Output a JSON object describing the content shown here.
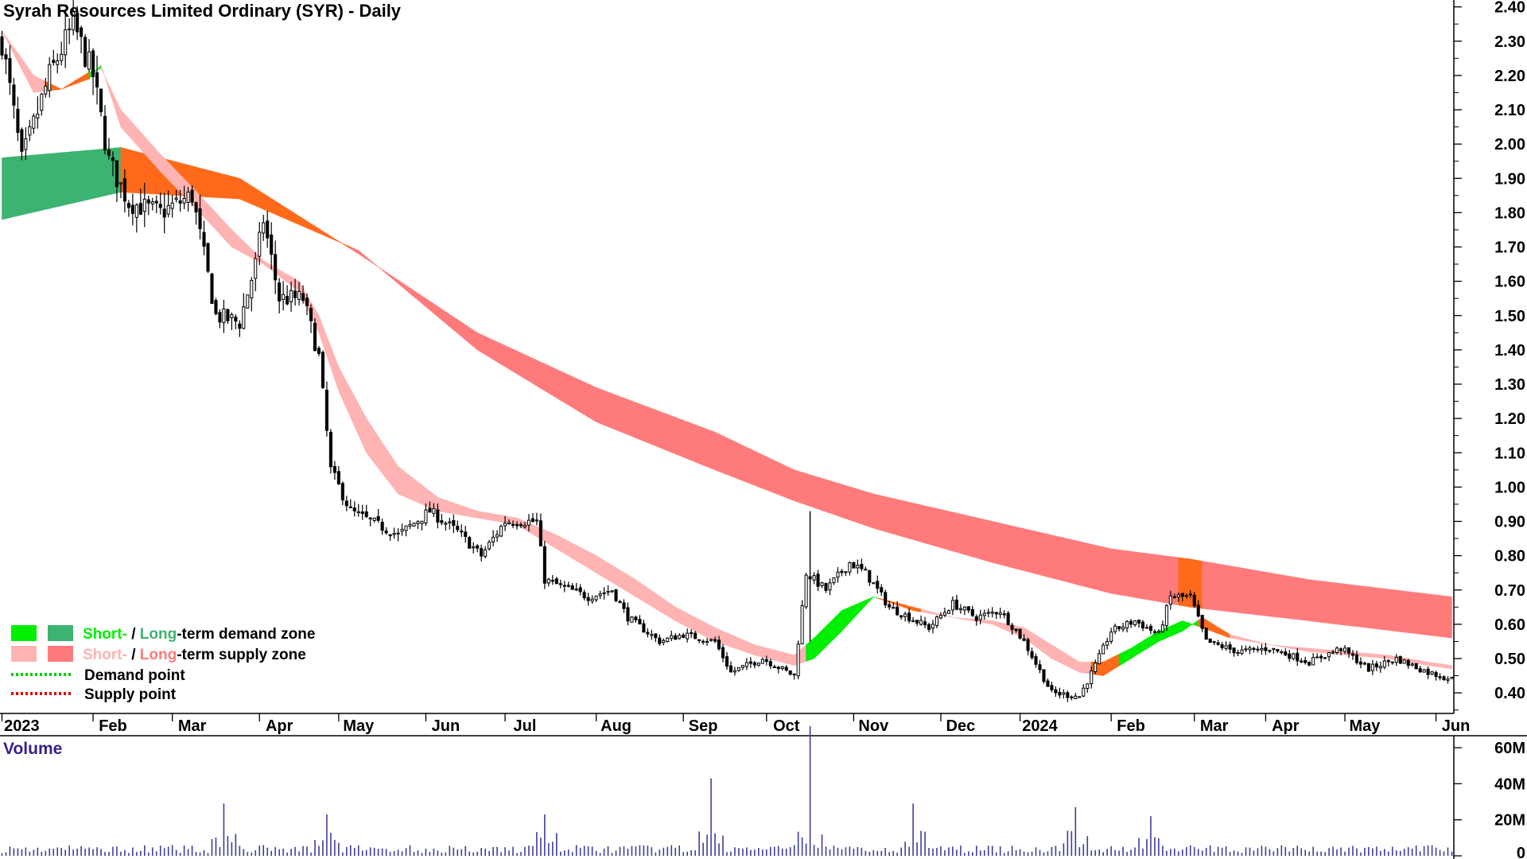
{
  "chart_data": {
    "type": "candlestick",
    "title": "Syrah Resources Limited Ordinary (SYR) - Daily",
    "price_axis": {
      "range": [
        0.34,
        2.42
      ],
      "ticks": [
        "2.40",
        "2.30",
        "2.20",
        "2.10",
        "2.00",
        "1.90",
        "1.80",
        "1.70",
        "1.60",
        "1.50",
        "1.40",
        "1.30",
        "1.20",
        "1.10",
        "1.00",
        "0.90",
        "0.80",
        "0.70",
        "0.60",
        "0.50",
        "0.40"
      ]
    },
    "x_labels": [
      "2023",
      "Feb",
      "Mar",
      "Apr",
      "May",
      "Jun",
      "Jul",
      "Aug",
      "Sep",
      "Oct",
      "Nov",
      "Dec",
      "2024",
      "Feb",
      "Mar",
      "Apr",
      "May",
      "Jun"
    ],
    "x_label_day_index": [
      3,
      26,
      46,
      68,
      88,
      110,
      130,
      153,
      175,
      196,
      218,
      240,
      260,
      283,
      304,
      322,
      342,
      365
    ],
    "volume": {
      "title": "Volume",
      "axis_ticks": [
        "60M",
        "40M",
        "20M",
        "0"
      ],
      "range_millions": [
        0,
        64
      ],
      "color": "#3d3d9e",
      "spikes": [
        {
          "day": 56,
          "value": 29
        },
        {
          "day": 82,
          "value": 23
        },
        {
          "day": 137,
          "value": 23
        },
        {
          "day": 179,
          "value": 43
        },
        {
          "day": 204,
          "value": 72
        },
        {
          "day": 230,
          "value": 29
        },
        {
          "day": 271,
          "value": 27
        },
        {
          "day": 290,
          "value": 22
        }
      ]
    },
    "price_anchors": [
      {
        "day": 0,
        "close": 2.3
      },
      {
        "day": 5,
        "close": 1.95
      },
      {
        "day": 12,
        "close": 2.2
      },
      {
        "day": 18,
        "close": 2.35
      },
      {
        "day": 23,
        "close": 2.2
      },
      {
        "day": 27,
        "close": 1.95
      },
      {
        "day": 32,
        "close": 1.83
      },
      {
        "day": 40,
        "close": 1.8
      },
      {
        "day": 48,
        "close": 1.85
      },
      {
        "day": 54,
        "close": 1.5
      },
      {
        "day": 60,
        "close": 1.48
      },
      {
        "day": 64,
        "close": 1.65
      },
      {
        "day": 66,
        "close": 1.78
      },
      {
        "day": 70,
        "close": 1.55
      },
      {
        "day": 76,
        "close": 1.55
      },
      {
        "day": 80,
        "close": 1.38
      },
      {
        "day": 83,
        "close": 1.05
      },
      {
        "day": 88,
        "close": 0.93
      },
      {
        "day": 100,
        "close": 0.86
      },
      {
        "day": 108,
        "close": 0.93
      },
      {
        "day": 115,
        "close": 0.87
      },
      {
        "day": 121,
        "close": 0.8
      },
      {
        "day": 127,
        "close": 0.9
      },
      {
        "day": 135,
        "close": 0.9
      },
      {
        "day": 137,
        "close": 0.73
      },
      {
        "day": 148,
        "close": 0.68
      },
      {
        "day": 154,
        "close": 0.7
      },
      {
        "day": 158,
        "close": 0.62
      },
      {
        "day": 166,
        "close": 0.55
      },
      {
        "day": 172,
        "close": 0.57
      },
      {
        "day": 180,
        "close": 0.55
      },
      {
        "day": 184,
        "close": 0.46
      },
      {
        "day": 192,
        "close": 0.5
      },
      {
        "day": 200,
        "close": 0.45
      },
      {
        "day": 203,
        "close": 0.75
      },
      {
        "day": 208,
        "close": 0.7
      },
      {
        "day": 214,
        "close": 0.78
      },
      {
        "day": 218,
        "close": 0.75
      },
      {
        "day": 224,
        "close": 0.65
      },
      {
        "day": 234,
        "close": 0.59
      },
      {
        "day": 240,
        "close": 0.66
      },
      {
        "day": 246,
        "close": 0.62
      },
      {
        "day": 252,
        "close": 0.64
      },
      {
        "day": 258,
        "close": 0.55
      },
      {
        "day": 265,
        "close": 0.4
      },
      {
        "day": 272,
        "close": 0.39
      },
      {
        "day": 276,
        "close": 0.48
      },
      {
        "day": 280,
        "close": 0.58
      },
      {
        "day": 286,
        "close": 0.61
      },
      {
        "day": 292,
        "close": 0.57
      },
      {
        "day": 295,
        "close": 0.68
      },
      {
        "day": 300,
        "close": 0.68
      },
      {
        "day": 304,
        "close": 0.55
      },
      {
        "day": 312,
        "close": 0.52
      },
      {
        "day": 320,
        "close": 0.53
      },
      {
        "day": 330,
        "close": 0.49
      },
      {
        "day": 338,
        "close": 0.53
      },
      {
        "day": 345,
        "close": 0.47
      },
      {
        "day": 352,
        "close": 0.5
      },
      {
        "day": 360,
        "close": 0.46
      },
      {
        "day": 366,
        "close": 0.44
      }
    ],
    "long_term_zone": {
      "upper": [
        [
          0,
          1.96
        ],
        [
          30,
          1.99
        ],
        [
          60,
          1.9
        ],
        [
          90,
          1.68
        ],
        [
          120,
          1.45
        ],
        [
          150,
          1.29
        ],
        [
          180,
          1.16
        ],
        [
          200,
          1.05
        ],
        [
          220,
          0.98
        ],
        [
          250,
          0.9
        ],
        [
          280,
          0.82
        ],
        [
          300,
          0.79
        ],
        [
          330,
          0.73
        ],
        [
          366,
          0.68
        ]
      ],
      "lower": [
        [
          0,
          1.78
        ],
        [
          30,
          1.86
        ],
        [
          60,
          1.84
        ],
        [
          90,
          1.69
        ],
        [
          120,
          1.4
        ],
        [
          150,
          1.19
        ],
        [
          180,
          1.05
        ],
        [
          200,
          0.96
        ],
        [
          220,
          0.88
        ],
        [
          250,
          0.78
        ],
        [
          280,
          0.69
        ],
        [
          300,
          0.65
        ],
        [
          330,
          0.61
        ],
        [
          366,
          0.56
        ]
      ],
      "segments": [
        {
          "from": 0,
          "to": 30,
          "color": "#3cb371"
        },
        {
          "from": 30,
          "to": 88,
          "color": "#ff6a1a"
        },
        {
          "from": 88,
          "to": 297,
          "color": "#ff7b7b"
        },
        {
          "from": 297,
          "to": 303,
          "color": "#ff6a1a"
        },
        {
          "from": 303,
          "to": 366,
          "color": "#ff7b7b"
        }
      ]
    },
    "short_term_zone": {
      "upper": [
        [
          0,
          2.33
        ],
        [
          8,
          2.2
        ],
        [
          15,
          2.16
        ],
        [
          22,
          2.21
        ],
        [
          25,
          2.22
        ],
        [
          30,
          2.1
        ],
        [
          40,
          1.97
        ],
        [
          50,
          1.85
        ],
        [
          58,
          1.75
        ],
        [
          66,
          1.66
        ],
        [
          75,
          1.6
        ],
        [
          80,
          1.5
        ],
        [
          85,
          1.35
        ],
        [
          92,
          1.2
        ],
        [
          100,
          1.06
        ],
        [
          110,
          0.97
        ],
        [
          120,
          0.93
        ],
        [
          130,
          0.91
        ],
        [
          140,
          0.86
        ],
        [
          150,
          0.8
        ],
        [
          160,
          0.73
        ],
        [
          170,
          0.65
        ],
        [
          180,
          0.59
        ],
        [
          190,
          0.54
        ],
        [
          200,
          0.51
        ],
        [
          205,
          0.56
        ],
        [
          212,
          0.64
        ],
        [
          220,
          0.68
        ],
        [
          230,
          0.65
        ],
        [
          240,
          0.62
        ],
        [
          250,
          0.61
        ],
        [
          258,
          0.59
        ],
        [
          265,
          0.54
        ],
        [
          272,
          0.49
        ],
        [
          278,
          0.49
        ],
        [
          285,
          0.53
        ],
        [
          292,
          0.58
        ],
        [
          298,
          0.61
        ],
        [
          303,
          0.59
        ],
        [
          310,
          0.56
        ],
        [
          320,
          0.54
        ],
        [
          330,
          0.53
        ],
        [
          340,
          0.52
        ],
        [
          350,
          0.51
        ],
        [
          360,
          0.49
        ],
        [
          366,
          0.48
        ]
      ],
      "lower": [
        [
          0,
          2.33
        ],
        [
          8,
          2.15
        ],
        [
          15,
          2.16
        ],
        [
          22,
          2.19
        ],
        [
          25,
          2.23
        ],
        [
          30,
          2.05
        ],
        [
          40,
          1.92
        ],
        [
          50,
          1.8
        ],
        [
          58,
          1.7
        ],
        [
          66,
          1.65
        ],
        [
          75,
          1.57
        ],
        [
          80,
          1.45
        ],
        [
          85,
          1.28
        ],
        [
          92,
          1.1
        ],
        [
          100,
          0.98
        ],
        [
          110,
          0.93
        ],
        [
          120,
          0.91
        ],
        [
          130,
          0.89
        ],
        [
          140,
          0.82
        ],
        [
          150,
          0.75
        ],
        [
          160,
          0.68
        ],
        [
          170,
          0.61
        ],
        [
          180,
          0.55
        ],
        [
          190,
          0.51
        ],
        [
          200,
          0.48
        ],
        [
          205,
          0.5
        ],
        [
          212,
          0.58
        ],
        [
          220,
          0.68
        ],
        [
          230,
          0.64
        ],
        [
          240,
          0.62
        ],
        [
          250,
          0.6
        ],
        [
          258,
          0.56
        ],
        [
          265,
          0.5
        ],
        [
          272,
          0.46
        ],
        [
          278,
          0.45
        ],
        [
          285,
          0.5
        ],
        [
          292,
          0.55
        ],
        [
          298,
          0.58
        ],
        [
          303,
          0.62
        ],
        [
          310,
          0.57
        ],
        [
          320,
          0.54
        ],
        [
          330,
          0.52
        ],
        [
          340,
          0.51
        ],
        [
          350,
          0.5
        ],
        [
          360,
          0.48
        ],
        [
          366,
          0.47
        ]
      ],
      "segments": [
        {
          "from": 0,
          "to": 11,
          "color": "#ffb3b3"
        },
        {
          "from": 11,
          "to": 22,
          "color": "#ff6a1a"
        },
        {
          "from": 22,
          "to": 25,
          "color": "#00ee00"
        },
        {
          "from": 25,
          "to": 203,
          "color": "#ffb3b3"
        },
        {
          "from": 203,
          "to": 221,
          "color": "#00ee00"
        },
        {
          "from": 221,
          "to": 232,
          "color": "#ff6a1a"
        },
        {
          "from": 232,
          "to": 275,
          "color": "#ffb3b3"
        },
        {
          "from": 275,
          "to": 282,
          "color": "#ff6a1a"
        },
        {
          "from": 282,
          "to": 302,
          "color": "#00ee00"
        },
        {
          "from": 302,
          "to": 310,
          "color": "#ff6a1a"
        },
        {
          "from": 310,
          "to": 366,
          "color": "#ffb3b3"
        }
      ]
    },
    "legend": {
      "position": "bottom-left",
      "items": [
        {
          "swatches": [
            "#00ee00",
            "#3cb371"
          ],
          "parts": [
            {
              "text": "Short-",
              "color": "#00ee00"
            },
            {
              "text": " / ",
              "color": "#000000"
            },
            {
              "text": "Long",
              "color": "#3cb371"
            },
            {
              "text": "-term demand zone",
              "color": "#000000"
            }
          ]
        },
        {
          "swatches": [
            "#ffb3b3",
            "#ff7b7b"
          ],
          "parts": [
            {
              "text": "Short-",
              "color": "#ffb3b3"
            },
            {
              "text": " / ",
              "color": "#000000"
            },
            {
              "text": "Long",
              "color": "#ff7b7b"
            },
            {
              "text": "-term supply zone",
              "color": "#000000"
            }
          ]
        },
        {
          "dotted": "#00cc00",
          "parts": [
            {
              "text": "Demand point",
              "color": "#000000"
            }
          ]
        },
        {
          "dotted": "#dd0000",
          "parts": [
            {
              "text": "Supply point",
              "color": "#000000"
            }
          ]
        }
      ]
    }
  }
}
